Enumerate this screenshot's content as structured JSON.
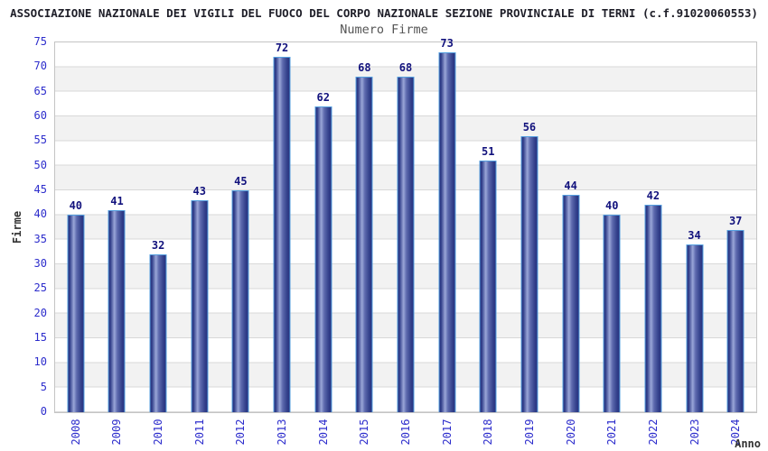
{
  "chart_data": {
    "type": "bar",
    "title": "ASSOCIAZIONE NAZIONALE DEI VIGILI DEL FUOCO DEL CORPO NAZIONALE SEZIONE PROVINCIALE DI TERNI (c.f.91020060553)",
    "subtitle": "Numero Firme",
    "xlabel": "Anno",
    "ylabel": "Firme",
    "categories": [
      "2008",
      "2009",
      "2010",
      "2011",
      "2012",
      "2013",
      "2014",
      "2015",
      "2016",
      "2017",
      "2018",
      "2019",
      "2020",
      "2021",
      "2022",
      "2023",
      "2024"
    ],
    "values": [
      40,
      41,
      32,
      43,
      45,
      72,
      62,
      68,
      68,
      73,
      51,
      56,
      44,
      40,
      42,
      34,
      37
    ],
    "ylim": [
      0,
      75
    ],
    "ytick_step": 5,
    "grid": "horizontal-bands-alternating",
    "legend": "none",
    "value_labels": "above-bars",
    "colors": {
      "title": "#1e1e28",
      "subtitle": "#555555",
      "axis_ticks": "#2d2dcc",
      "value_label": "#12127d",
      "axis_title": "#333333",
      "bar_edge": "#27337f",
      "bar_dark": "#323f8a",
      "bar_mid": "#5d6aae",
      "bar_light": "#9aa6d8",
      "bar_border": "#55a0e0",
      "band": "#f2f2f2",
      "gridline": "#d8d8d8",
      "plot_border": "#c4c4c4"
    }
  }
}
